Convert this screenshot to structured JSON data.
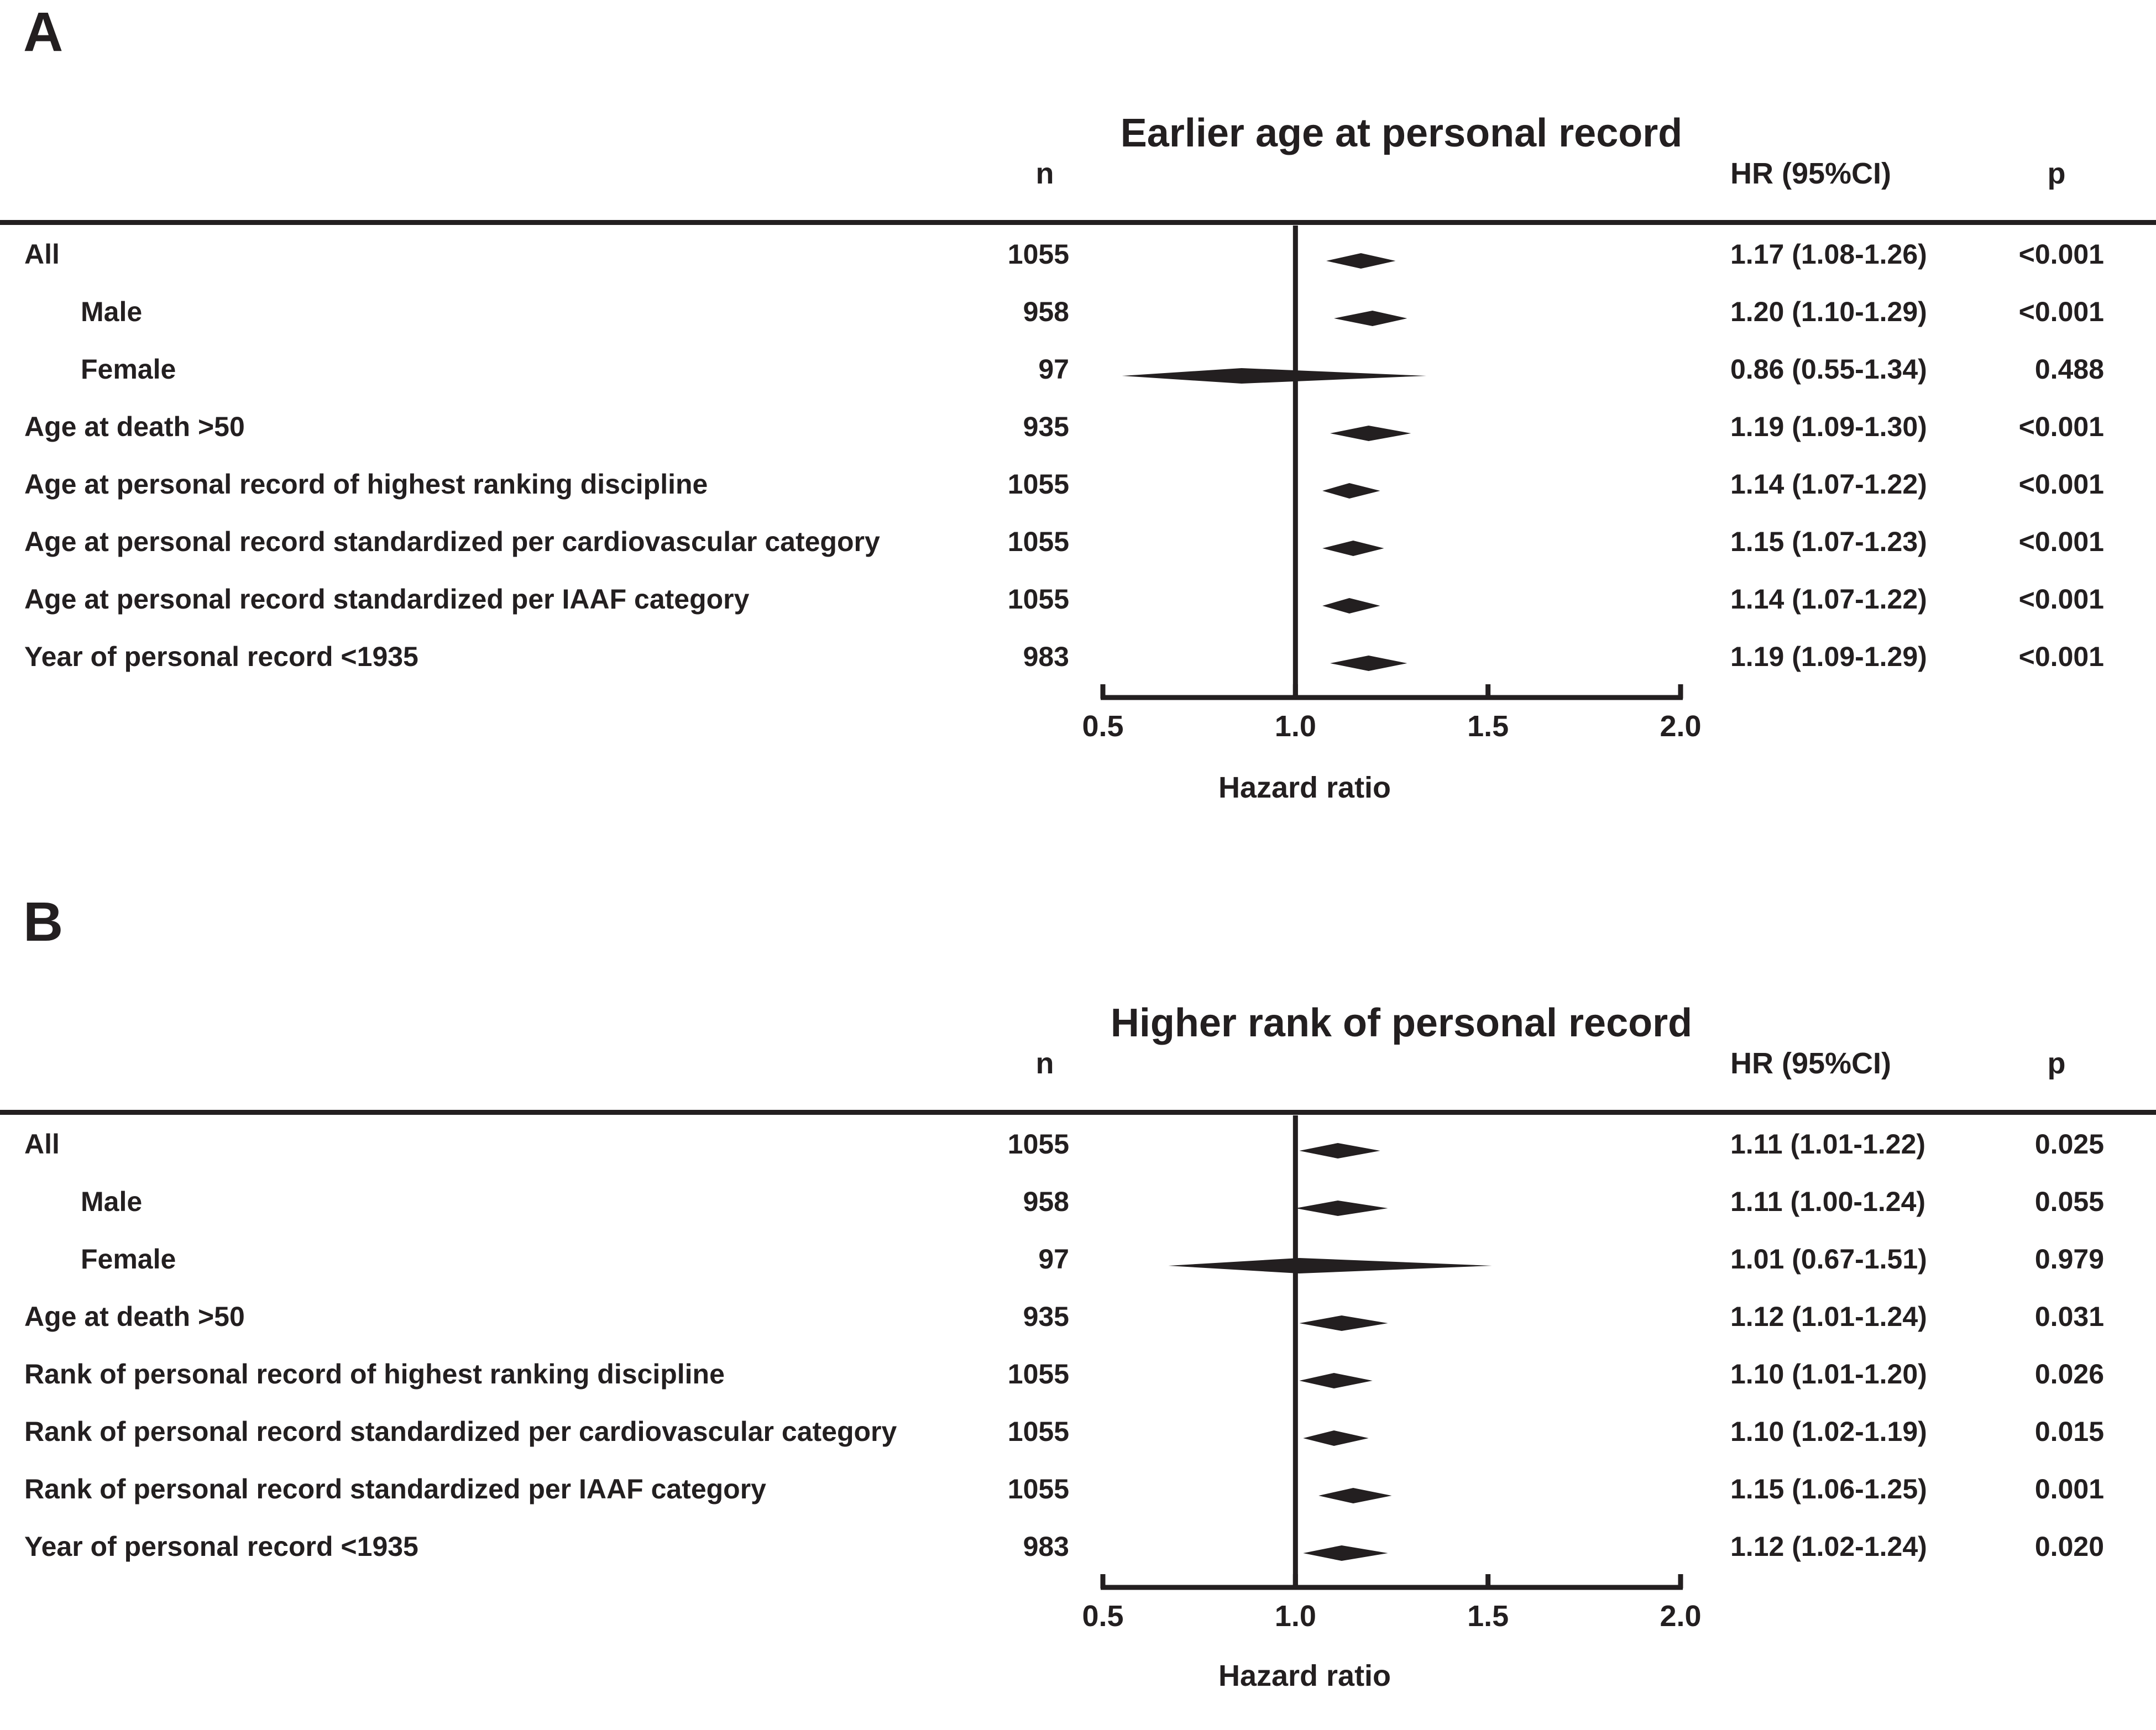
{
  "chart_data": [
    {
      "type": "forest",
      "panel_label": "A",
      "title": "Earlier age at personal record",
      "columns": {
        "n": "n",
        "hr": "HR (95%CI)",
        "p": "p"
      },
      "xlabel": "Hazard ratio",
      "xlim": [
        0.5,
        2.0
      ],
      "ticks": [
        "0.5",
        "1.0",
        "1.5",
        "2.0"
      ],
      "reference_line": 1.0,
      "rows": [
        {
          "label": "All",
          "indent": false,
          "n": "1055",
          "hr": 1.17,
          "lo": 1.08,
          "hi": 1.26,
          "hr_text": "1.17 (1.08-1.26)",
          "p": "<0.001"
        },
        {
          "label": "Male",
          "indent": true,
          "n": "958",
          "hr": 1.2,
          "lo": 1.1,
          "hi": 1.29,
          "hr_text": "1.20 (1.10-1.29)",
          "p": "<0.001"
        },
        {
          "label": "Female",
          "indent": true,
          "n": "97",
          "hr": 0.86,
          "lo": 0.55,
          "hi": 1.34,
          "hr_text": "0.86 (0.55-1.34)",
          "p": "0.488"
        },
        {
          "label": "Age at death >50",
          "indent": false,
          "n": "935",
          "hr": 1.19,
          "lo": 1.09,
          "hi": 1.3,
          "hr_text": "1.19 (1.09-1.30)",
          "p": "<0.001"
        },
        {
          "label": "Age at personal record of highest ranking discipline",
          "indent": false,
          "n": "1055",
          "hr": 1.14,
          "lo": 1.07,
          "hi": 1.22,
          "hr_text": "1.14 (1.07-1.22)",
          "p": "<0.001"
        },
        {
          "label": "Age at personal record standardized per cardiovascular category",
          "indent": false,
          "n": "1055",
          "hr": 1.15,
          "lo": 1.07,
          "hi": 1.23,
          "hr_text": "1.15 (1.07-1.23)",
          "p": "<0.001"
        },
        {
          "label": "Age at personal record standardized per IAAF category",
          "indent": false,
          "n": "1055",
          "hr": 1.14,
          "lo": 1.07,
          "hi": 1.22,
          "hr_text": "1.14 (1.07-1.22)",
          "p": "<0.001"
        },
        {
          "label": "Year of personal record <1935",
          "indent": false,
          "n": "983",
          "hr": 1.19,
          "lo": 1.09,
          "hi": 1.29,
          "hr_text": "1.19 (1.09-1.29)",
          "p": "<0.001"
        }
      ]
    },
    {
      "type": "forest",
      "panel_label": "B",
      "title": "Higher rank of personal record",
      "columns": {
        "n": "n",
        "hr": "HR (95%CI)",
        "p": "p"
      },
      "xlabel": "Hazard ratio",
      "xlim": [
        0.5,
        2.0
      ],
      "ticks": [
        "0.5",
        "1.0",
        "1.5",
        "2.0"
      ],
      "reference_line": 1.0,
      "rows": [
        {
          "label": "All",
          "indent": false,
          "n": "1055",
          "hr": 1.11,
          "lo": 1.01,
          "hi": 1.22,
          "hr_text": "1.11 (1.01-1.22)",
          "p": "0.025"
        },
        {
          "label": "Male",
          "indent": true,
          "n": "958",
          "hr": 1.11,
          "lo": 1.0,
          "hi": 1.24,
          "hr_text": "1.11 (1.00-1.24)",
          "p": "0.055"
        },
        {
          "label": "Female",
          "indent": true,
          "n": "97",
          "hr": 1.01,
          "lo": 0.67,
          "hi": 1.51,
          "hr_text": "1.01 (0.67-1.51)",
          "p": "0.979"
        },
        {
          "label": "Age at death >50",
          "indent": false,
          "n": "935",
          "hr": 1.12,
          "lo": 1.01,
          "hi": 1.24,
          "hr_text": "1.12 (1.01-1.24)",
          "p": "0.031"
        },
        {
          "label": "Rank of personal record of highest ranking discipline",
          "indent": false,
          "n": "1055",
          "hr": 1.1,
          "lo": 1.01,
          "hi": 1.2,
          "hr_text": "1.10 (1.01-1.20)",
          "p": "0.026"
        },
        {
          "label": "Rank of personal record standardized per cardiovascular category",
          "indent": false,
          "n": "1055",
          "hr": 1.1,
          "lo": 1.02,
          "hi": 1.19,
          "hr_text": "1.10 (1.02-1.19)",
          "p": "0.015"
        },
        {
          "label": "Rank of personal record standardized per IAAF category",
          "indent": false,
          "n": "1055",
          "hr": 1.15,
          "lo": 1.06,
          "hi": 1.25,
          "hr_text": "1.15 (1.06-1.25)",
          "p": "0.001"
        },
        {
          "label": "Year of personal record <1935",
          "indent": false,
          "n": "983",
          "hr": 1.12,
          "lo": 1.02,
          "hi": 1.24,
          "hr_text": "1.12 (1.02-1.24)",
          "p": "0.020"
        }
      ]
    }
  ]
}
